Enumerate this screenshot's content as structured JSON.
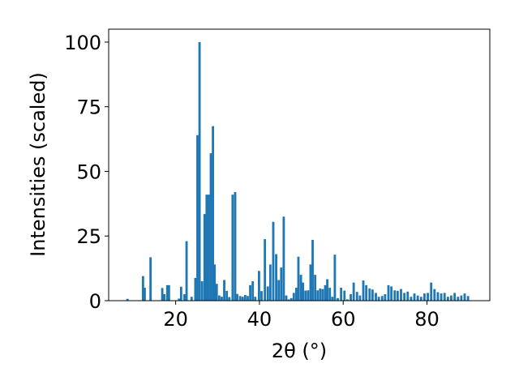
{
  "chart_data": {
    "type": "bar",
    "xlabel": "2θ (°)",
    "ylabel": "Intensities (scaled)",
    "xlim": [
      4.0,
      95.0
    ],
    "ylim": [
      0,
      105
    ],
    "xticks": [
      20,
      40,
      60,
      80
    ],
    "yticks": [
      0,
      25,
      50,
      75,
      100
    ],
    "grid": false,
    "bar_color": "#1f77b4",
    "bar_width": 0.55,
    "x": [
      8.5,
      12.2,
      12.6,
      14.0,
      16.8,
      17.3,
      18.0,
      18.4,
      20.8,
      21.3,
      22.1,
      22.6,
      23.8,
      24.7,
      25.2,
      25.7,
      26.3,
      26.9,
      27.4,
      27.9,
      28.4,
      28.9,
      29.3,
      29.8,
      30.4,
      31.0,
      31.6,
      32.2,
      32.8,
      33.6,
      34.2,
      34.7,
      35.4,
      36.0,
      36.6,
      37.2,
      37.8,
      38.4,
      39.0,
      39.9,
      40.5,
      41.3,
      42.0,
      42.6,
      43.3,
      44.0,
      44.6,
      45.2,
      45.8,
      46.4,
      47.0,
      47.6,
      48.2,
      48.8,
      49.3,
      49.9,
      50.4,
      51.0,
      51.6,
      52.2,
      52.7,
      53.3,
      53.9,
      54.5,
      55.1,
      55.7,
      56.2,
      56.8,
      57.4,
      58.0,
      58.7,
      59.5,
      60.3,
      61.0,
      61.8,
      62.5,
      63.3,
      64.0,
      64.8,
      65.5,
      66.3,
      67.0,
      67.8,
      68.5,
      69.3,
      70.0,
      70.8,
      71.5,
      72.3,
      73.0,
      73.8,
      74.6,
      75.4,
      76.2,
      77.0,
      77.8,
      78.6,
      79.4,
      80.2,
      81.0,
      81.8,
      82.6,
      83.4,
      84.2,
      85.0,
      85.8,
      86.6,
      87.4,
      88.2,
      89.0,
      89.8
    ],
    "values": [
      0.7,
      9.5,
      5.0,
      16.8,
      4.9,
      2.5,
      6.0,
      6.0,
      0.8,
      5.4,
      2.5,
      23.0,
      1.5,
      8.8,
      64.0,
      100.0,
      7.5,
      33.5,
      41.0,
      41.0,
      57.0,
      67.5,
      14.0,
      6.5,
      2.0,
      1.5,
      8.0,
      3.8,
      1.4,
      41.0,
      42.0,
      2.6,
      1.8,
      1.5,
      2.2,
      1.8,
      6.0,
      7.5,
      1.5,
      11.5,
      3.7,
      23.8,
      5.5,
      14.0,
      30.5,
      18.0,
      8.0,
      12.8,
      32.5,
      2.0,
      0.5,
      1.0,
      3.0,
      5.0,
      17.0,
      10.0,
      7.0,
      3.9,
      4.0,
      14.0,
      23.5,
      10.0,
      4.0,
      4.7,
      4.5,
      6.0,
      8.3,
      5.0,
      1.5,
      17.8,
      1.0,
      5.0,
      3.9,
      0.5,
      2.5,
      7.0,
      3.4,
      2.0,
      7.8,
      6.0,
      4.7,
      4.3,
      3.0,
      1.5,
      1.8,
      2.5,
      6.0,
      5.5,
      4.0,
      3.8,
      4.5,
      3.0,
      3.5,
      1.5,
      2.8,
      2.0,
      1.5,
      2.8,
      3.0,
      7.0,
      4.5,
      3.3,
      2.8,
      3.0,
      1.5,
      2.0,
      3.0,
      1.5,
      2.0,
      2.8,
      1.8
    ]
  }
}
